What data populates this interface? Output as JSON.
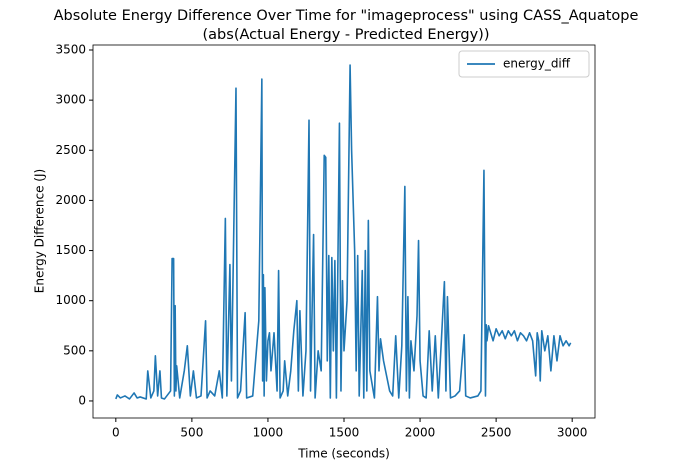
{
  "chart_data": {
    "type": "line",
    "title": "Absolute Energy Difference Over Time for \"imageprocess\" using CASS_Aquatope",
    "subtitle": "(abs(Actual Energy - Predicted Energy))",
    "x_label": "Time (seconds)",
    "y_label": "Energy Difference (J)",
    "xlim": [
      -150,
      3150
    ],
    "ylim": [
      -170,
      3550
    ],
    "xticks": [
      0,
      500,
      1000,
      1500,
      2000,
      2500,
      3000
    ],
    "yticks": [
      0,
      500,
      1000,
      1500,
      2000,
      2500,
      3000,
      3500
    ],
    "legend": "upper right",
    "series": [
      {
        "name": "energy_diff",
        "color": "#1f77b4",
        "x": [
          0,
          10,
          30,
          60,
          90,
          120,
          140,
          160,
          200,
          210,
          230,
          250,
          260,
          275,
          290,
          300,
          320,
          360,
          370,
          380,
          385,
          390,
          395,
          400,
          420,
          450,
          470,
          490,
          510,
          530,
          560,
          590,
          600,
          620,
          650,
          680,
          700,
          720,
          730,
          750,
          760,
          790,
          800,
          820,
          850,
          860,
          900,
          940,
          960,
          965,
          970,
          975,
          980,
          990,
          1000,
          1010,
          1020,
          1040,
          1060,
          1070,
          1080,
          1100,
          1110,
          1130,
          1150,
          1170,
          1190,
          1200,
          1210,
          1230,
          1250,
          1270,
          1280,
          1300,
          1310,
          1330,
          1350,
          1370,
          1380,
          1390,
          1400,
          1410,
          1420,
          1430,
          1440,
          1450,
          1470,
          1480,
          1490,
          1500,
          1520,
          1540,
          1550,
          1570,
          1580,
          1590,
          1600,
          1620,
          1630,
          1640,
          1650,
          1660,
          1670,
          1700,
          1720,
          1730,
          1740,
          1760,
          1800,
          1820,
          1840,
          1860,
          1880,
          1900,
          1910,
          1920,
          1930,
          1940,
          1960,
          1980,
          1990,
          2000,
          2020,
          2040,
          2060,
          2080,
          2100,
          2120,
          2140,
          2160,
          2170,
          2180,
          2200,
          2230,
          2260,
          2290,
          2300,
          2330,
          2380,
          2400,
          2420,
          2430,
          2435,
          2440,
          2450,
          2460,
          2480,
          2500,
          2520,
          2540,
          2560,
          2580,
          2600,
          2620,
          2640,
          2660,
          2680,
          2700,
          2720,
          2740,
          2760,
          2770,
          2780,
          2790,
          2800,
          2820,
          2840,
          2860,
          2880,
          2900,
          2920,
          2940,
          2960,
          2980,
          2990
        ],
        "values": [
          20,
          60,
          30,
          50,
          20,
          80,
          30,
          40,
          20,
          300,
          30,
          100,
          450,
          50,
          300,
          30,
          20,
          100,
          1420,
          1420,
          50,
          950,
          100,
          350,
          30,
          300,
          550,
          50,
          300,
          30,
          50,
          800,
          30,
          100,
          50,
          300,
          30,
          1820,
          50,
          1360,
          200,
          3120,
          30,
          100,
          880,
          30,
          50,
          800,
          3210,
          200,
          1260,
          50,
          1130,
          200,
          600,
          680,
          300,
          680,
          100,
          1300,
          30,
          100,
          400,
          50,
          300,
          700,
          1000,
          100,
          900,
          50,
          500,
          2800,
          100,
          1660,
          30,
          500,
          300,
          2450,
          2430,
          400,
          1450,
          30,
          1430,
          500,
          1400,
          30,
          2770,
          100,
          1200,
          500,
          1000,
          3350,
          2500,
          1500,
          300,
          1450,
          50,
          1300,
          30,
          1500,
          100,
          1800,
          300,
          30,
          1040,
          300,
          620,
          400,
          100,
          50,
          650,
          30,
          550,
          2140,
          100,
          1040,
          30,
          600,
          300,
          850,
          1600,
          400,
          50,
          30,
          700,
          100,
          650,
          30,
          600,
          1190,
          100,
          1040,
          30,
          50,
          100,
          660,
          50,
          30,
          50,
          100,
          2300,
          50,
          760,
          600,
          750,
          700,
          600,
          720,
          650,
          700,
          620,
          700,
          650,
          700,
          600,
          680,
          650,
          600,
          680,
          600,
          250,
          680,
          600,
          200,
          700,
          500,
          650,
          300,
          650,
          400,
          650,
          550,
          600,
          550,
          580
        ]
      }
    ]
  }
}
